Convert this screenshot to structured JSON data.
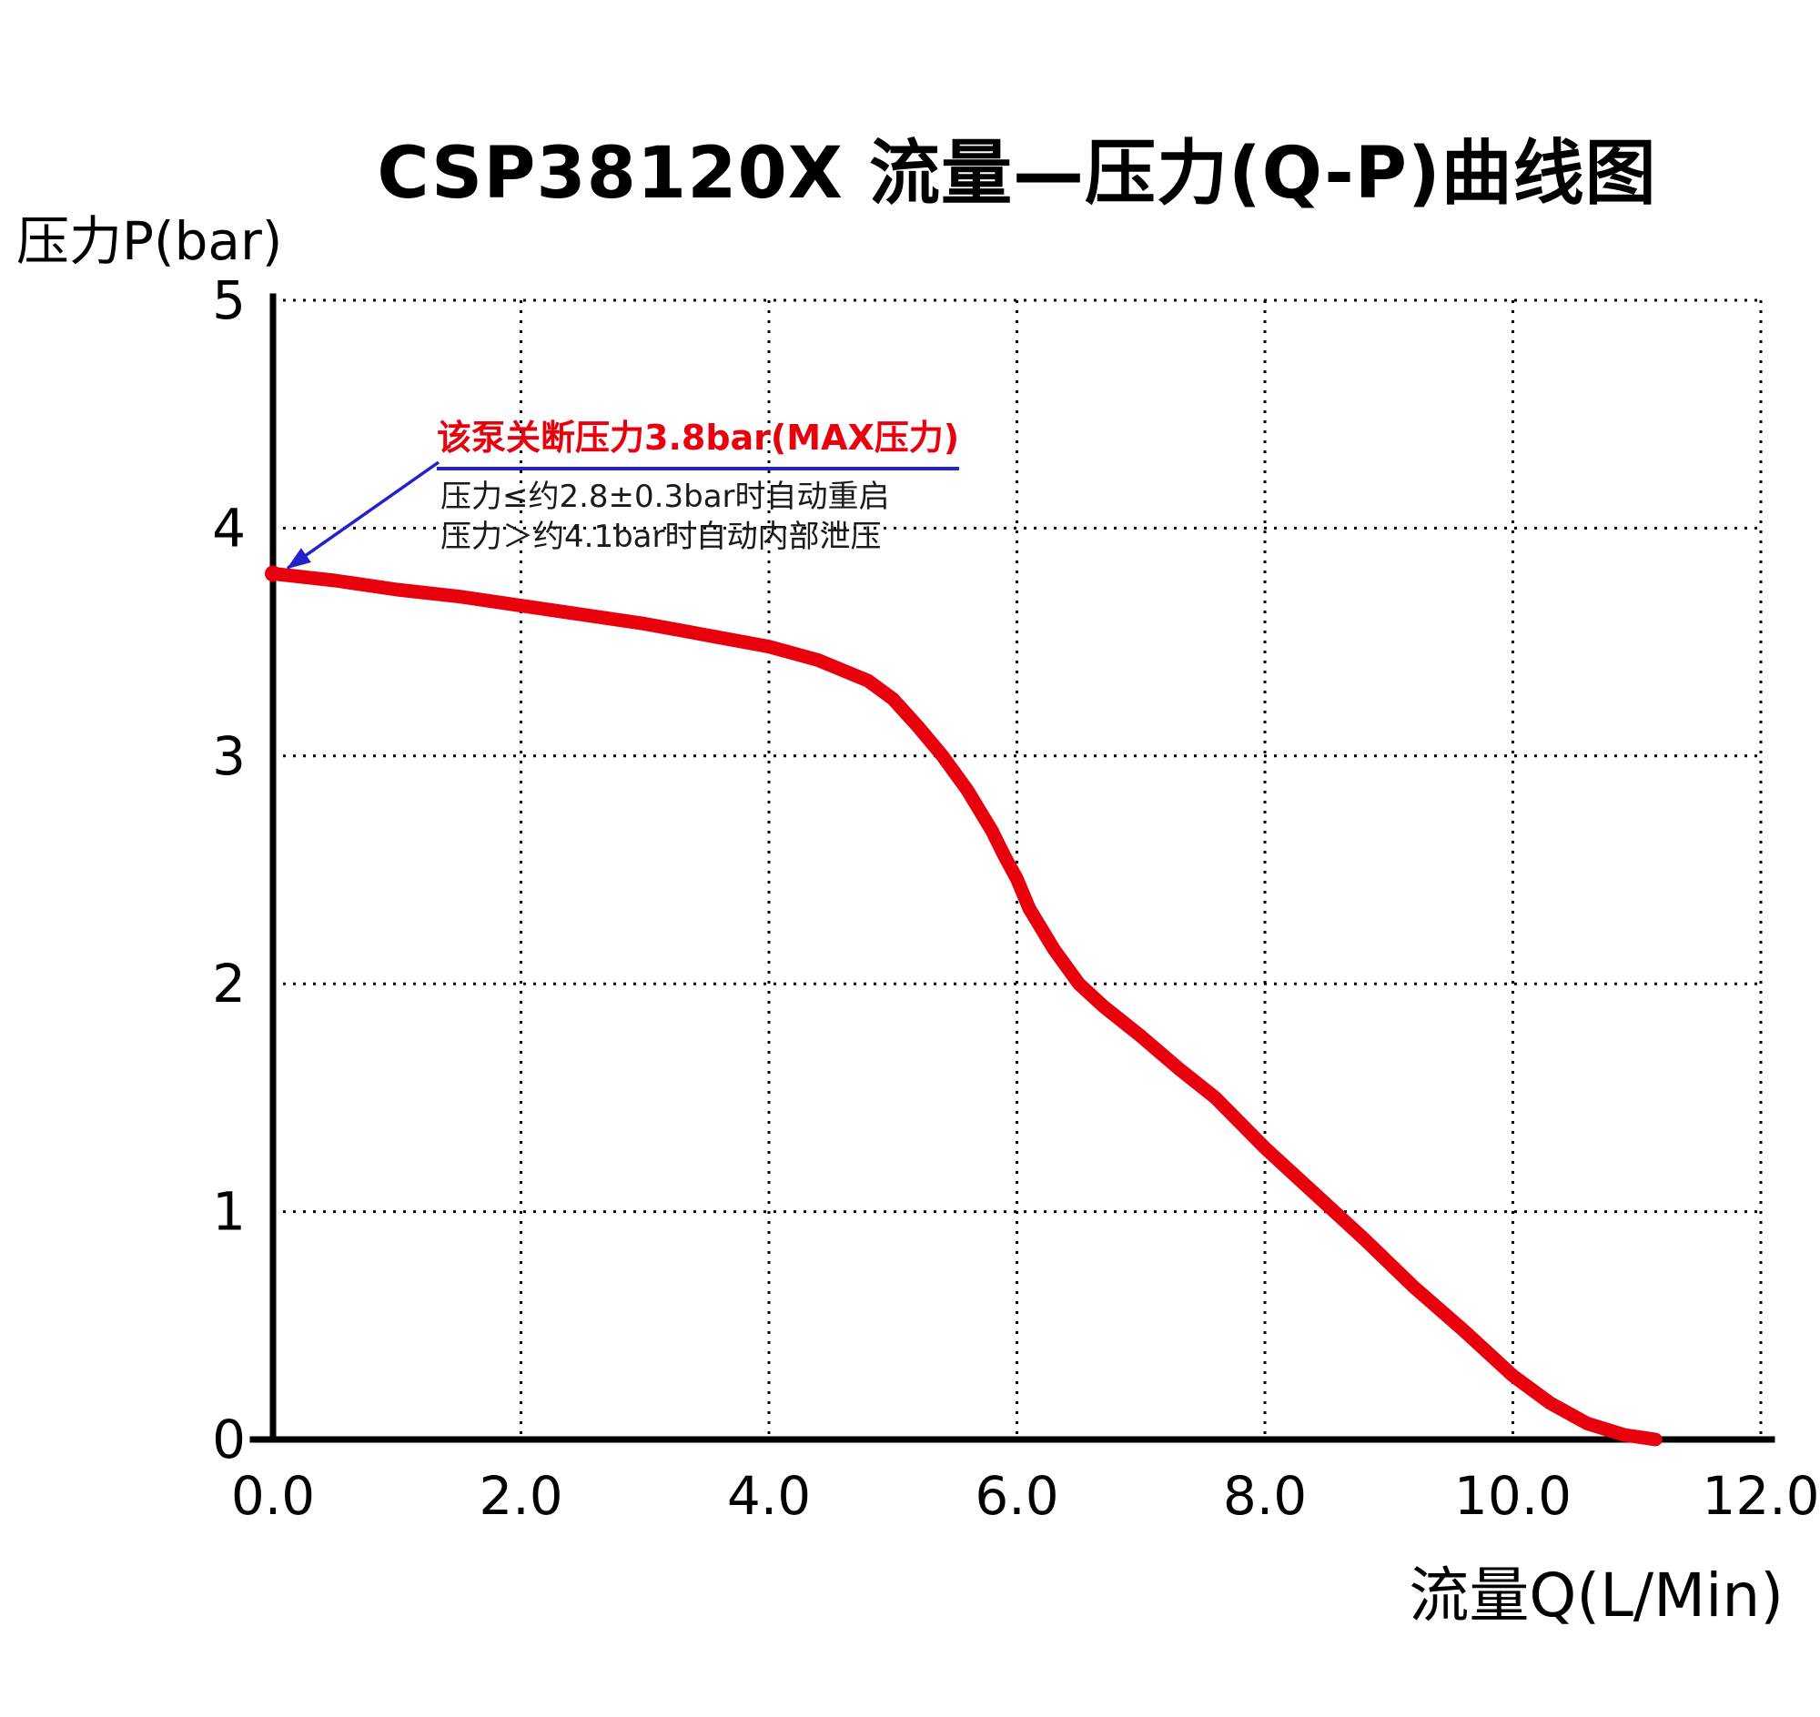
{
  "title": "CSP38120X 流量—压力(Q-P)曲线图",
  "y_axis_label": "压力P(bar)",
  "x_axis_label": "流量Q(L/Min)",
  "annotation": {
    "headline": "该泵关断压力3.8bar(MAX压力)",
    "line1": "压力≤约2.8±0.3bar时自动重启",
    "line2": "压力＞约4.1bar时自动内部泄压"
  },
  "colors": {
    "curve": "#e8000d",
    "annotation_headline": "#e8000d",
    "annotation_arrow": "#2222cc",
    "grid": "#000000",
    "axis": "#000000"
  },
  "chart_data": {
    "type": "line",
    "title": "CSP38120X 流量—压力(Q-P)曲线图",
    "xlabel": "流量Q(L/Min)",
    "ylabel": "压力P(bar)",
    "xlim": [
      0,
      12
    ],
    "ylim": [
      0,
      5
    ],
    "x_tick_values": [
      0,
      2,
      4,
      6,
      8,
      10,
      12
    ],
    "x_ticks": [
      "0.0",
      "2.0",
      "4.0",
      "6.0",
      "8.0",
      "10.0",
      "12.0"
    ],
    "y_tick_values": [
      0,
      1,
      2,
      3,
      4,
      5
    ],
    "y_ticks": [
      "0",
      "1",
      "2",
      "3",
      "4",
      "5"
    ],
    "grid": "dotted",
    "legend": "none",
    "shutoff_point": [
      0,
      3.8
    ],
    "series": [
      {
        "name": "Q-P curve",
        "color": "#e8000d",
        "points": [
          [
            0,
            3.8
          ],
          [
            0.5,
            3.77
          ],
          [
            1,
            3.73
          ],
          [
            1.5,
            3.7
          ],
          [
            2,
            3.66
          ],
          [
            2.5,
            3.62
          ],
          [
            3,
            3.58
          ],
          [
            3.5,
            3.53
          ],
          [
            4,
            3.48
          ],
          [
            4.4,
            3.42
          ],
          [
            4.8,
            3.33
          ],
          [
            5,
            3.25
          ],
          [
            5.2,
            3.13
          ],
          [
            5.4,
            3.0
          ],
          [
            5.6,
            2.85
          ],
          [
            5.8,
            2.67
          ],
          [
            5.9,
            2.56
          ],
          [
            6.0,
            2.46
          ],
          [
            6.1,
            2.33
          ],
          [
            6.3,
            2.15
          ],
          [
            6.5,
            2.0
          ],
          [
            6.7,
            1.9
          ],
          [
            7.0,
            1.77
          ],
          [
            7.3,
            1.63
          ],
          [
            7.6,
            1.5
          ],
          [
            8.0,
            1.28
          ],
          [
            8.4,
            1.08
          ],
          [
            8.8,
            0.88
          ],
          [
            9.2,
            0.67
          ],
          [
            9.6,
            0.48
          ],
          [
            10.0,
            0.28
          ],
          [
            10.3,
            0.16
          ],
          [
            10.6,
            0.07
          ],
          [
            10.9,
            0.02
          ],
          [
            11.15,
            0.0
          ]
        ]
      }
    ]
  }
}
